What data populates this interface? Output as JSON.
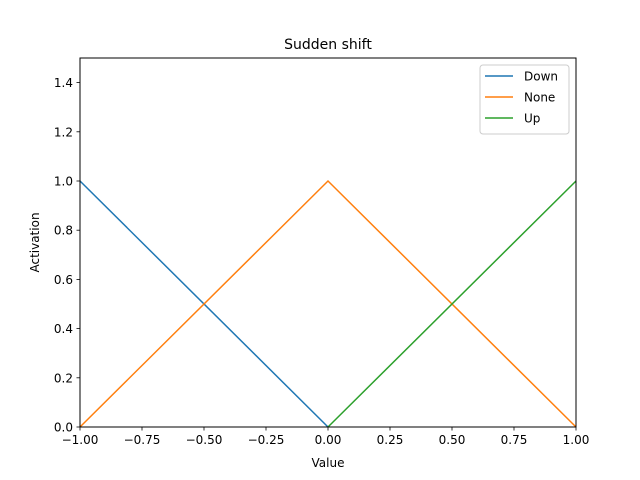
{
  "chart_data": {
    "type": "line",
    "title": "Sudden shift",
    "xlabel": "Value",
    "ylabel": "Activation",
    "xlim": [
      -1.0,
      1.0
    ],
    "ylim": [
      0.0,
      1.5
    ],
    "xticks": [
      -1.0,
      -0.75,
      -0.5,
      -0.25,
      0.0,
      0.25,
      0.5,
      0.75,
      1.0
    ],
    "xtick_labels": [
      "−1.00",
      "−0.75",
      "−0.50",
      "−0.25",
      "0.00",
      "0.25",
      "0.50",
      "0.75",
      "1.00"
    ],
    "yticks": [
      0.0,
      0.2,
      0.4,
      0.6,
      0.8,
      1.0,
      1.2,
      1.4
    ],
    "ytick_labels": [
      "0.0",
      "0.2",
      "0.4",
      "0.6",
      "0.8",
      "1.0",
      "1.2",
      "1.4"
    ],
    "grid": false,
    "legend_position": "top-right",
    "series": [
      {
        "name": "Down",
        "color": "#1f77b4",
        "x": [
          -1.0,
          0.0
        ],
        "y": [
          1.0,
          0.0
        ]
      },
      {
        "name": "None",
        "color": "#ff7f0e",
        "x": [
          -1.0,
          0.0,
          1.0
        ],
        "y": [
          0.0,
          1.0,
          0.0
        ]
      },
      {
        "name": "Up",
        "color": "#2ca02c",
        "x": [
          0.0,
          1.0
        ],
        "y": [
          0.0,
          1.0
        ]
      }
    ]
  }
}
